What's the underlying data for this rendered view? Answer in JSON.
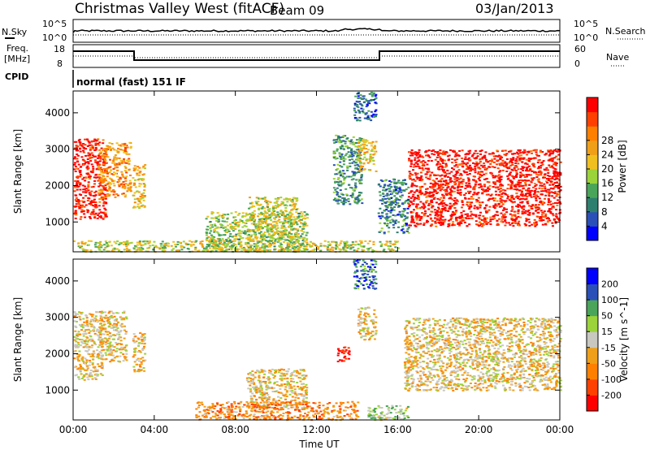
{
  "header": {
    "title": "Christmas Valley West (fitACF)",
    "beam": "Beam 09",
    "date": "03/Jan/2013"
  },
  "nsky_panel": {
    "left_label": "N.Sky",
    "left_ticks": [
      "10^5",
      "10^0"
    ],
    "right_ticks": [
      "10^5",
      "10^0"
    ],
    "right_label": "N.Search"
  },
  "freq_panel": {
    "left_label_line1": "Freq.",
    "left_label_line2": "[MHz]",
    "left_ticks": [
      "18",
      "8"
    ],
    "right_ticks": [
      "60",
      "0"
    ],
    "right_label": "Nave"
  },
  "cpid": {
    "label": "CPID",
    "value": "normal (fast) 151 IF"
  },
  "chart_data": [
    {
      "type": "heatmap",
      "title": "",
      "xlabel": "Time UT",
      "ylabel": "Slant Range [km]",
      "xlim": [
        0,
        24
      ],
      "ylim": [
        180,
        4600
      ],
      "x_ticks": [
        "00:00",
        "04:00",
        "08:00",
        "12:00",
        "16:00",
        "20:00",
        "00:00"
      ],
      "y_ticks": [
        "1000",
        "2000",
        "3000",
        "4000"
      ],
      "colorbar": {
        "label": "Power [dB]",
        "ticks": [
          "4",
          "8",
          "12",
          "16",
          "20",
          "24",
          "28"
        ],
        "colors": [
          "#0000ff",
          "#2a50b8",
          "#2f7f6e",
          "#4aa55a",
          "#9bd33a",
          "#f0c020",
          "#f0a018",
          "#ff8000",
          "#ff4000",
          "#ff0000"
        ]
      },
      "regions": [
        {
          "x": [
            0.0,
            1.6
          ],
          "y": [
            1100,
            3300
          ],
          "level": 0.95
        },
        {
          "x": [
            1.2,
            2.8
          ],
          "y": [
            1700,
            3200
          ],
          "level": 0.7
        },
        {
          "x": [
            2.9,
            3.5
          ],
          "y": [
            1400,
            2600
          ],
          "level": 0.6
        },
        {
          "x": [
            6.5,
            11.5
          ],
          "y": [
            200,
            1300
          ],
          "level": 0.45
        },
        {
          "x": [
            8.6,
            11.0
          ],
          "y": [
            500,
            1700
          ],
          "level": 0.5
        },
        {
          "x": [
            12.8,
            14.2
          ],
          "y": [
            1500,
            3400
          ],
          "level": 0.3
        },
        {
          "x": [
            13.8,
            14.9
          ],
          "y": [
            3800,
            4600
          ],
          "level": 0.2
        },
        {
          "x": [
            14.0,
            14.9
          ],
          "y": [
            2400,
            3300
          ],
          "level": 0.6
        },
        {
          "x": [
            15.0,
            16.5
          ],
          "y": [
            700,
            2200
          ],
          "level": 0.25
        },
        {
          "x": [
            16.5,
            24.0
          ],
          "y": [
            900,
            3000
          ],
          "level": 0.95
        },
        {
          "x": [
            0.0,
            16.0
          ],
          "y": [
            200,
            500
          ],
          "level": 0.5
        }
      ]
    },
    {
      "type": "heatmap",
      "title": "",
      "xlabel": "Time UT",
      "ylabel": "Slant Range [km]",
      "xlim": [
        0,
        24
      ],
      "ylim": [
        180,
        4600
      ],
      "x_ticks": [
        "00:00",
        "04:00",
        "08:00",
        "12:00",
        "16:00",
        "20:00",
        "00:00"
      ],
      "y_ticks": [
        "1000",
        "2000",
        "3000",
        "4000"
      ],
      "colorbar": {
        "label": "Velocity [m s^-1]",
        "ticks": [
          "-200",
          "-100",
          "-50",
          "-15",
          "15",
          "50",
          "100",
          "200"
        ],
        "colors": [
          "#ff0000",
          "#ff4000",
          "#ff8000",
          "#f0a018",
          "#c8c8c0",
          "#9bd33a",
          "#4aa55a",
          "#2a50b8",
          "#0000ff"
        ]
      },
      "regions": [
        {
          "x": [
            0.0,
            1.4
          ],
          "y": [
            1300,
            3200
          ],
          "level": 0.45
        },
        {
          "x": [
            1.2,
            2.6
          ],
          "y": [
            1800,
            3200
          ],
          "level": 0.45
        },
        {
          "x": [
            2.9,
            3.5
          ],
          "y": [
            1500,
            2600
          ],
          "level": 0.45
        },
        {
          "x": [
            8.5,
            11.5
          ],
          "y": [
            500,
            1600
          ],
          "level": 0.45
        },
        {
          "x": [
            6.0,
            14.0
          ],
          "y": [
            200,
            700
          ],
          "level": 0.3
        },
        {
          "x": [
            13.8,
            14.9
          ],
          "y": [
            3800,
            4600
          ],
          "level": 0.8
        },
        {
          "x": [
            13.0,
            13.6
          ],
          "y": [
            1800,
            2200
          ],
          "level": 0.05
        },
        {
          "x": [
            14.0,
            14.9
          ],
          "y": [
            2400,
            3300
          ],
          "level": 0.45
        },
        {
          "x": [
            16.3,
            24.0
          ],
          "y": [
            1000,
            3000
          ],
          "level": 0.45
        },
        {
          "x": [
            14.5,
            16.5
          ],
          "y": [
            200,
            600
          ],
          "level": 0.6
        }
      ]
    }
  ]
}
